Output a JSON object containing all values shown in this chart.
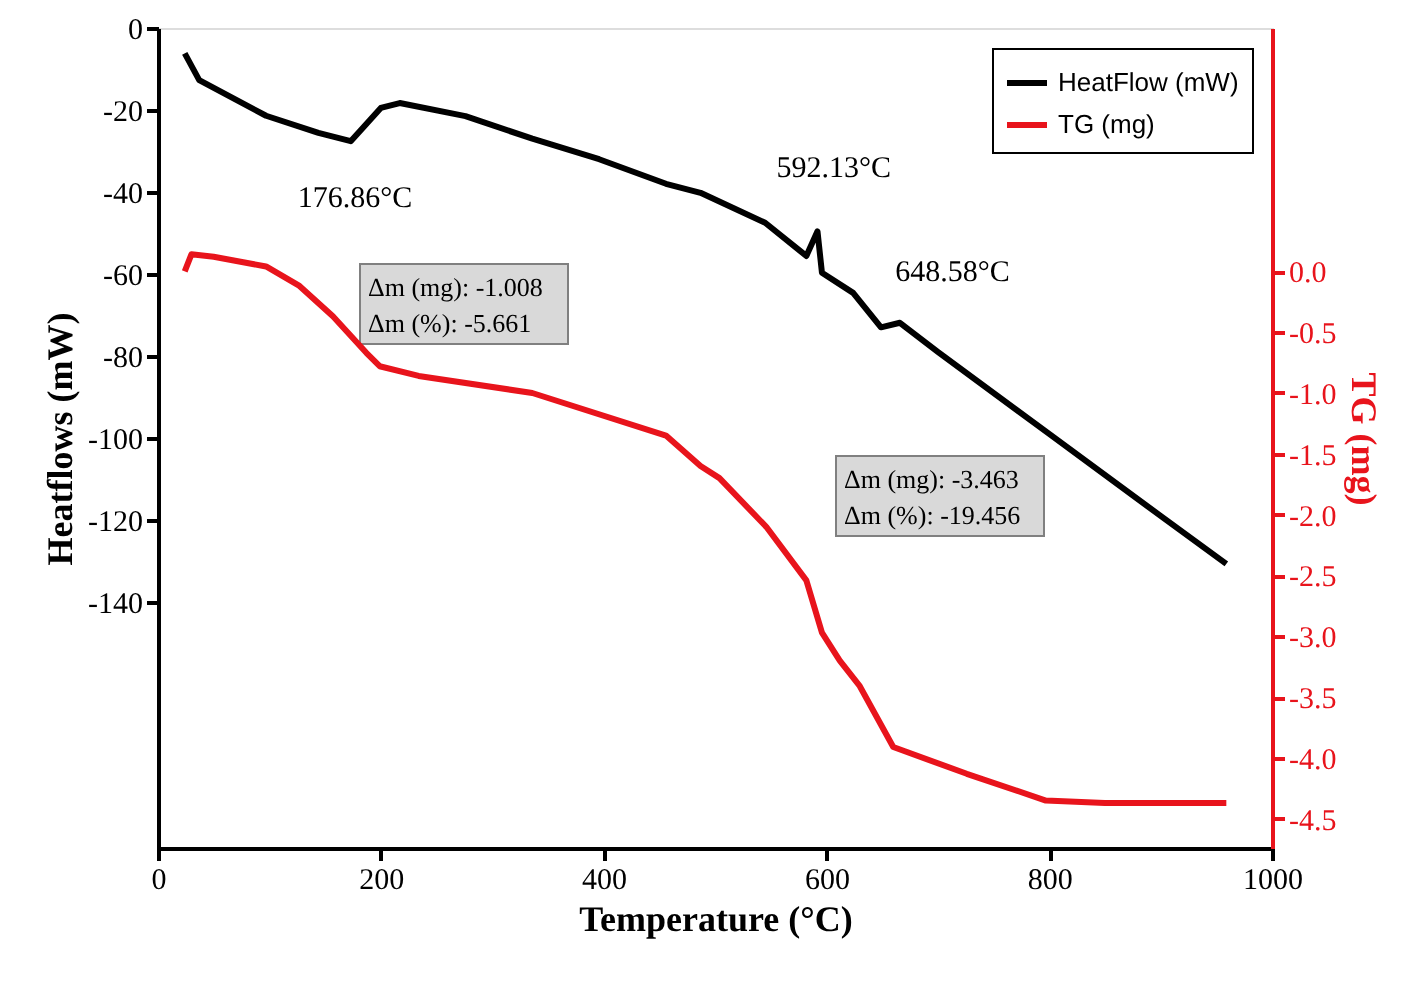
{
  "chart_data": {
    "type": "line",
    "xlabel": "Temperature (°C)",
    "ylabel": "Heatflows (mW)",
    "y2label": "TG (mg)",
    "xlim": [
      0,
      1000
    ],
    "xticks": [
      0,
      200,
      400,
      600,
      800,
      {
        "value": 1000,
        "label": "1000"
      }
    ],
    "ylim": [
      -200,
      0
    ],
    "yticks": [
      -140,
      -120,
      -100,
      -80,
      -60,
      -40,
      -20,
      0
    ],
    "y2lim": [
      -4.74,
      2.0
    ],
    "y2ticks": [
      {
        "value": 0,
        "label": "0.0"
      },
      {
        "value": -0.5,
        "label": "-0.5"
      },
      {
        "value": -1,
        "label": "-1.0"
      },
      {
        "value": -1.5,
        "label": "-1.5"
      },
      {
        "value": -2,
        "label": "-2.0"
      },
      {
        "value": -2.5,
        "label": "-2.5"
      },
      {
        "value": -3,
        "label": "-3.0"
      },
      {
        "value": -3.5,
        "label": "-3.5"
      },
      {
        "value": -4,
        "label": "-4.0"
      },
      {
        "value": -4.5,
        "label": "-4.5"
      }
    ],
    "grid": false,
    "legend": "top right",
    "line_style": "solid",
    "marker": "none",
    "series": [
      {
        "name": "HeatFlow (mW)",
        "color": "#000000",
        "x": [
          24,
          37,
          97,
          144,
          173,
          185,
          200,
          217,
          276,
          336,
          396,
          456,
          487,
          545,
          582,
          592,
          596,
          624,
          649,
          666,
          700,
          800,
          900,
          959
        ],
        "values": [
          -6.2,
          -12.7,
          -21.4,
          -25.6,
          -27.6,
          -24,
          -19.5,
          -18.3,
          -21.5,
          -27,
          -32,
          -38,
          -40.2,
          -47.5,
          -55.6,
          -49.6,
          -59.7,
          -64.6,
          -73,
          -71.9,
          -79,
          -99,
          -119,
          -130.7
        ]
      },
      {
        "name": "TG (mg)",
        "color": "#e8141c",
        "axis": "y2",
        "x": [
          24,
          30,
          50,
          97,
          127,
          157,
          187,
          199,
          234,
          336,
          456,
          487,
          504,
          546,
          582,
          596,
          612,
          630,
          660,
          726,
          797,
          850,
          959
        ],
        "values": [
          0.0,
          0.14,
          0.12,
          0.04,
          -0.12,
          -0.37,
          -0.67,
          -0.78,
          -0.86,
          -1.0,
          -1.35,
          -1.6,
          -1.7,
          -2.1,
          -2.54,
          -2.97,
          -3.2,
          -3.41,
          -3.91,
          -4.13,
          -4.35,
          -4.37,
          -4.37
        ]
      }
    ],
    "annotations": [
      {
        "text": "176.86°C",
        "x": 176.86,
        "y": -27.6
      },
      {
        "text": "592.13°C",
        "x": 592.13,
        "y": -49.6
      },
      {
        "text": "648.58°C",
        "x": 648.58,
        "y": -73
      },
      "Δm (mg): -1.008",
      "Δm (%): -5.661",
      "Δm (mg): -3.463",
      "Δm (%): -19.456"
    ]
  }
}
